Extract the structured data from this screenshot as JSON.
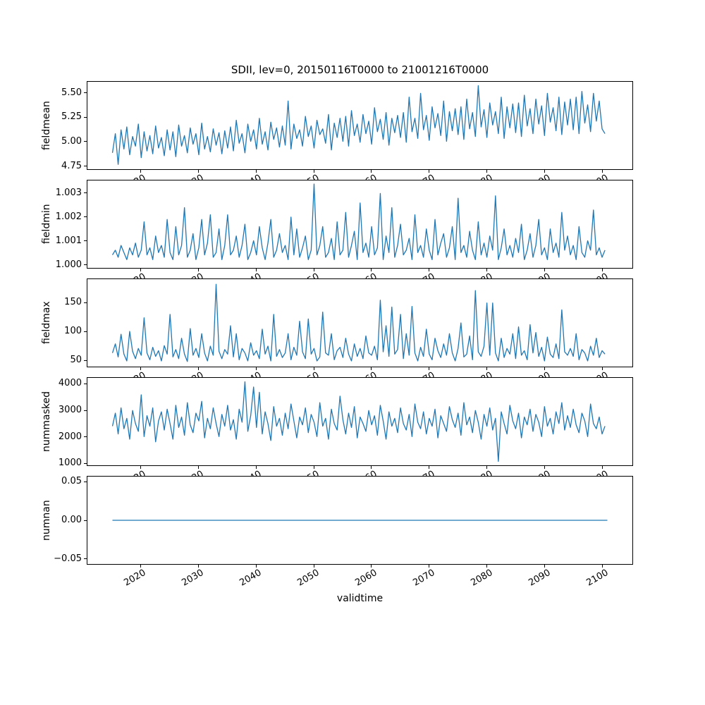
{
  "line_color": "#1f77b4",
  "chart_data": {
    "type": "line",
    "title": "SDII, lev=0, 20150116T0000 to 21001216T0000",
    "xlabel": "validtime",
    "legend": "none",
    "grid": false,
    "xlim": [
      2010.7,
      2105.3
    ],
    "xticks": [
      2020,
      2030,
      2040,
      2050,
      2060,
      2070,
      2080,
      2090,
      2100
    ],
    "xtick_labels": [
      "2020",
      "2030",
      "2040",
      "2050",
      "2060",
      "2070",
      "2080",
      "2090",
      "2100"
    ],
    "subplots": [
      {
        "ylabel": "fieldmean",
        "ylim": [
          4.71,
          5.62
        ],
        "yticks": [
          4.75,
          5.0,
          5.25,
          5.5
        ],
        "ytick_labels": [
          "4.75",
          "5.00",
          "5.25",
          "5.50"
        ],
        "x_start": 2015.04,
        "x_step": 0.5,
        "values": [
          4.88,
          5.08,
          4.76,
          5.12,
          4.92,
          5.15,
          4.86,
          5.05,
          4.95,
          5.18,
          4.83,
          5.1,
          4.9,
          5.06,
          4.87,
          5.16,
          4.93,
          5.04,
          4.85,
          5.12,
          4.91,
          5.1,
          4.84,
          5.17,
          4.95,
          5.06,
          4.88,
          5.14,
          4.97,
          5.08,
          4.86,
          5.19,
          4.92,
          5.05,
          4.89,
          5.13,
          4.96,
          5.09,
          4.87,
          5.11,
          4.93,
          5.15,
          4.9,
          5.22,
          4.98,
          5.08,
          4.88,
          5.18,
          5.0,
          5.12,
          4.92,
          5.24,
          4.97,
          5.1,
          4.91,
          5.2,
          5.02,
          5.14,
          4.94,
          5.16,
          4.96,
          5.42,
          4.92,
          5.18,
          5.03,
          5.12,
          4.95,
          5.26,
          5.05,
          5.16,
          4.93,
          5.22,
          5.07,
          5.13,
          4.98,
          5.28,
          4.91,
          5.19,
          5.04,
          5.24,
          5.0,
          5.26,
          4.95,
          5.32,
          5.06,
          5.18,
          4.99,
          5.28,
          5.08,
          5.21,
          4.97,
          5.35,
          5.1,
          5.23,
          5.02,
          5.3,
          4.96,
          5.24,
          5.09,
          5.27,
          5.04,
          5.3,
          4.99,
          5.46,
          5.1,
          5.24,
          5.03,
          5.5,
          5.12,
          5.27,
          5.01,
          5.36,
          5.14,
          5.29,
          5.06,
          5.42,
          5.0,
          5.31,
          5.11,
          5.34,
          5.07,
          5.36,
          5.02,
          5.44,
          5.13,
          5.3,
          5.05,
          5.58,
          5.15,
          5.33,
          5.04,
          5.4,
          5.17,
          5.31,
          5.08,
          5.46,
          5.03,
          5.36,
          5.14,
          5.39,
          5.09,
          5.4,
          5.05,
          5.48,
          5.16,
          5.34,
          5.08,
          5.44,
          5.18,
          5.37,
          5.06,
          5.5,
          5.2,
          5.35,
          5.11,
          5.46,
          5.07,
          5.41,
          5.17,
          5.44,
          5.12,
          5.46,
          5.08,
          5.52,
          5.19,
          5.38,
          5.1,
          5.5,
          5.21,
          5.42,
          5.13,
          5.08
        ]
      },
      {
        "ylabel": "fieldmin",
        "ylim": [
          0.99985,
          1.00355
        ],
        "yticks": [
          1.0,
          1.001,
          1.002,
          1.003
        ],
        "ytick_labels": [
          "1.000",
          "1.001",
          "1.002",
          "1.003"
        ],
        "x_start": 2015.04,
        "x_step": 0.5,
        "values": [
          1.0004,
          1.0006,
          1.0003,
          1.0008,
          1.0005,
          1.0002,
          1.0007,
          1.0004,
          1.0009,
          1.0003,
          1.0006,
          1.0018,
          1.0004,
          1.0007,
          1.0002,
          1.0012,
          1.0005,
          1.0008,
          1.0003,
          1.0019,
          1.0005,
          1.0002,
          1.0016,
          1.0004,
          1.0008,
          1.0024,
          1.0003,
          1.0006,
          1.0013,
          1.0002,
          1.0007,
          1.0019,
          1.0004,
          1.0009,
          1.0021,
          1.0003,
          1.0005,
          1.0015,
          1.0002,
          1.0008,
          1.0021,
          1.0004,
          1.0006,
          1.0012,
          1.0003,
          1.0008,
          1.0017,
          1.0002,
          1.0005,
          1.001,
          1.0004,
          1.0016,
          1.0007,
          1.0002,
          1.0009,
          1.0019,
          1.0003,
          1.0006,
          1.0013,
          1.0005,
          1.0008,
          1.0002,
          1.002,
          1.0004,
          1.0015,
          1.0003,
          1.0007,
          1.0012,
          1.0002,
          1.0006,
          1.0034,
          1.0004,
          1.0008,
          1.0016,
          1.0003,
          1.0005,
          1.0011,
          1.0002,
          1.0018,
          1.0004,
          1.0006,
          1.0022,
          1.0003,
          1.0008,
          1.0014,
          1.0002,
          1.0026,
          1.0005,
          1.0009,
          1.0003,
          1.0016,
          1.0004,
          1.0007,
          1.003,
          1.0002,
          1.0012,
          1.0005,
          1.0024,
          1.0003,
          1.0008,
          1.0017,
          1.0004,
          1.0006,
          1.0011,
          1.0002,
          1.0021,
          1.0005,
          1.0008,
          1.0003,
          1.0015,
          1.0006,
          1.0002,
          1.0019,
          1.0004,
          1.0009,
          1.0013,
          1.0003,
          1.0007,
          1.0016,
          1.0002,
          1.0028,
          1.0005,
          1.0008,
          1.0003,
          1.0014,
          1.0006,
          1.0002,
          1.0018,
          1.0004,
          1.0009,
          1.0003,
          1.0012,
          1.0006,
          1.0029,
          1.0002,
          1.0007,
          1.0015,
          1.0004,
          1.0008,
          1.0003,
          1.0011,
          1.0005,
          1.0017,
          1.0002,
          1.0006,
          1.0013,
          1.0003,
          1.0008,
          1.0019,
          1.0004,
          1.0007,
          1.0002,
          1.0015,
          1.0005,
          1.0009,
          1.0003,
          1.0022,
          1.0006,
          1.0012,
          1.0004,
          1.0008,
          1.0002,
          1.0016,
          1.0005,
          1.0003,
          1.001,
          1.0006,
          1.0023,
          1.0004,
          1.0007,
          1.0003,
          1.0006
        ]
      },
      {
        "ylabel": "fieldmax",
        "ylim": [
          38,
          192
        ],
        "yticks": [
          50,
          100,
          150
        ],
        "ytick_labels": [
          "50",
          "100",
          "150"
        ],
        "x_start": 2015.04,
        "x_step": 0.5,
        "values": [
          62,
          78,
          55,
          95,
          60,
          48,
          100,
          65,
          52,
          70,
          58,
          124,
          62,
          50,
          72,
          56,
          66,
          48,
          75,
          60,
          130,
          55,
          68,
          52,
          88,
          60,
          47,
          105,
          58,
          70,
          54,
          96,
          62,
          48,
          74,
          58,
          183,
          65,
          52,
          68,
          60,
          110,
          55,
          96,
          50,
          70,
          62,
          48,
          80,
          58,
          66,
          52,
          104,
          60,
          74,
          48,
          130,
          56,
          68,
          54,
          62,
          96,
          50,
          72,
          58,
          118,
          64,
          52,
          122,
          60,
          70,
          48,
          55,
          134,
          62,
          58,
          96,
          50,
          66,
          72,
          54,
          88,
          60,
          48,
          78,
          56,
          70,
          52,
          92,
          62,
          58,
          74,
          50,
          155,
          64,
          110,
          56,
          143,
          60,
          68,
          130,
          52,
          96,
          58,
          144,
          62,
          48,
          72,
          56,
          104,
          60,
          50,
          88,
          66,
          54,
          78,
          58,
          96,
          62,
          48,
          70,
          115,
          55,
          60,
          92,
          50,
          172,
          64,
          56,
          74,
          150,
          58,
          150,
          62,
          48,
          88,
          54,
          70,
          60,
          96,
          52,
          108,
          58,
          66,
          50,
          112,
          62,
          98,
          56,
          72,
          48,
          90,
          60,
          54,
          78,
          52,
          138,
          64,
          58,
          70,
          56,
          96,
          50,
          68,
          62,
          48,
          74,
          58,
          88,
          54,
          66,
          60
        ]
      },
      {
        "ylabel": "nummasked",
        "ylim": [
          900,
          4250
        ],
        "yticks": [
          1000,
          2000,
          3000,
          4000
        ],
        "ytick_labels": [
          "1000",
          "2000",
          "3000",
          "4000"
        ],
        "x_start": 2015.04,
        "x_step": 0.5,
        "values": [
          2400,
          2900,
          2100,
          3100,
          2300,
          2700,
          1900,
          3000,
          2500,
          2200,
          3600,
          2000,
          2800,
          2400,
          3100,
          1800,
          2600,
          2950,
          2250,
          3050,
          2500,
          1900,
          3200,
          2350,
          2750,
          2050,
          3300,
          2450,
          2150,
          2900,
          2600,
          3350,
          1950,
          2700,
          2300,
          3100,
          2500,
          2000,
          2850,
          2400,
          3200,
          2250,
          2650,
          1900,
          3050,
          2550,
          4100,
          2200,
          2800,
          3900,
          2350,
          3700,
          2100,
          2950,
          2500,
          1850,
          3150,
          2400,
          2700,
          2050,
          2900,
          2300,
          3250,
          2600,
          1950,
          2750,
          2450,
          3100,
          2150,
          2850,
          2550,
          2000,
          3300,
          2400,
          2700,
          1900,
          3050,
          2500,
          2250,
          3550,
          2650,
          2100,
          2900,
          2350,
          3150,
          1950,
          2750,
          2500,
          2200,
          3000,
          2450,
          2800,
          2050,
          3200,
          2600,
          1900,
          2950,
          2400,
          2700,
          2150,
          3100,
          2500,
          2250,
          2850,
          2000,
          3250,
          2550,
          2300,
          2950,
          2100,
          2700,
          2400,
          3050,
          1950,
          2800,
          2500,
          2200,
          3150,
          2650,
          2350,
          2900,
          2050,
          3300,
          2450,
          2750,
          2150,
          3000,
          2550,
          1900,
          2850,
          2400,
          3100,
          2250,
          2700,
          1050,
          2950,
          2500,
          2100,
          3200,
          2600,
          2300,
          2900,
          1950,
          2750,
          2450,
          3050,
          2200,
          2850,
          2550,
          2000,
          3150,
          2400,
          2700,
          2100,
          2950,
          2500,
          3300,
          2250,
          2800,
          2350,
          3050,
          2450,
          2150,
          2900,
          2600,
          2000,
          3250,
          2500,
          2300,
          2750,
          2100,
          2400
        ]
      },
      {
        "ylabel": "numnan",
        "ylim": [
          -0.0575,
          0.0575
        ],
        "yticks": [
          -0.05,
          0.0,
          0.05
        ],
        "ytick_labels": [
          "−0.05",
          "0.00",
          "0.05"
        ],
        "x_start": 2015.04,
        "x_step": 85.92,
        "values": [
          0,
          0
        ]
      }
    ]
  }
}
